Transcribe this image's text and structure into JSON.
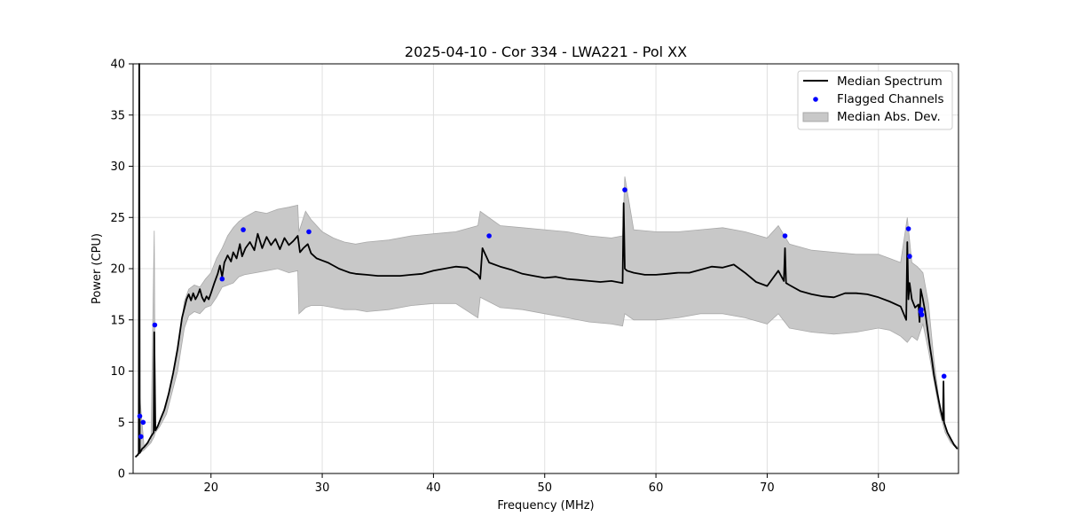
{
  "chart_data": {
    "type": "line",
    "title": "2025-04-10 - Cor 334 - LWA221 - Pol XX",
    "xlabel": "Frequency (MHz)",
    "ylabel": "Power (CPU)",
    "xlim": [
      13.0,
      87.2
    ],
    "ylim": [
      0,
      40
    ],
    "xticks": [
      20,
      30,
      40,
      50,
      60,
      70,
      80
    ],
    "yticks": [
      0,
      5,
      10,
      15,
      20,
      25,
      30,
      35,
      40
    ],
    "grid": true,
    "legend_position": "top-right",
    "legend": [
      "Median Spectrum",
      "Flagged Channels",
      "Median Abs. Dev."
    ],
    "series": [
      {
        "name": "Median Spectrum",
        "kind": "line",
        "color": "#000000",
        "x": [
          13.2,
          13.4,
          13.5,
          13.55,
          13.6,
          13.7,
          13.8,
          14.0,
          14.3,
          14.6,
          14.85,
          14.9,
          15.0,
          15.2,
          15.5,
          15.8,
          16.2,
          16.6,
          17.0,
          17.4,
          17.8,
          18.0,
          18.2,
          18.4,
          18.6,
          18.8,
          19.0,
          19.2,
          19.4,
          19.6,
          19.8,
          20.0,
          20.3,
          20.6,
          20.8,
          21.0,
          21.2,
          21.5,
          21.8,
          22.0,
          22.3,
          22.6,
          22.8,
          23.1,
          23.5,
          23.9,
          24.2,
          24.6,
          25.0,
          25.4,
          25.8,
          26.2,
          26.6,
          27.0,
          27.4,
          27.8,
          28.0,
          28.3,
          28.7,
          29.0,
          29.5,
          30.0,
          30.5,
          31.0,
          31.5,
          32.0,
          32.5,
          33.0,
          34.0,
          35.0,
          36.0,
          37.0,
          38.0,
          39.0,
          40.0,
          41.0,
          42.0,
          43.0,
          44.0,
          44.2,
          44.4,
          45.0,
          46.0,
          47.0,
          48.0,
          49.0,
          50.0,
          51.0,
          52.0,
          53.0,
          54.0,
          55.0,
          56.0,
          57.0,
          57.1,
          57.2,
          57.4,
          58.0,
          59.0,
          60.0,
          61.0,
          62.0,
          63.0,
          64.0,
          65.0,
          66.0,
          67.0,
          68.0,
          69.0,
          70.0,
          71.0,
          71.5,
          71.6,
          71.7,
          72.0,
          73.0,
          74.0,
          75.0,
          76.0,
          77.0,
          78.0,
          79.0,
          80.0,
          81.0,
          82.0,
          82.5,
          82.6,
          82.7,
          82.8,
          83.0,
          83.3,
          83.6,
          83.7,
          83.8,
          84.0,
          84.2,
          84.4,
          84.6,
          84.8,
          85.0,
          85.3,
          85.6,
          85.8,
          85.85,
          85.9,
          86.2,
          86.5,
          86.8,
          87.1
        ],
        "y": [
          1.6,
          1.8,
          2.0,
          40.0,
          2.0,
          2.2,
          2.4,
          2.6,
          3.0,
          3.6,
          4.0,
          13.8,
          4.2,
          4.6,
          5.4,
          6.2,
          7.8,
          9.8,
          12.2,
          15.2,
          17.0,
          17.5,
          16.9,
          17.6,
          17.0,
          17.4,
          18.0,
          17.2,
          16.8,
          17.3,
          17.0,
          17.6,
          18.6,
          19.5,
          20.3,
          19.2,
          20.6,
          21.3,
          20.7,
          21.6,
          21.0,
          22.4,
          21.2,
          22.0,
          22.6,
          21.8,
          23.4,
          22.0,
          23.1,
          22.3,
          22.9,
          21.9,
          23.0,
          22.3,
          22.7,
          23.2,
          21.6,
          22.0,
          22.4,
          21.5,
          21.0,
          20.8,
          20.6,
          20.3,
          20.0,
          19.8,
          19.6,
          19.5,
          19.4,
          19.3,
          19.3,
          19.3,
          19.4,
          19.5,
          19.8,
          20.0,
          20.2,
          20.1,
          19.4,
          19.0,
          22.0,
          20.6,
          20.2,
          19.9,
          19.5,
          19.3,
          19.1,
          19.2,
          19.0,
          18.9,
          18.8,
          18.7,
          18.8,
          18.6,
          26.4,
          20.0,
          19.8,
          19.6,
          19.4,
          19.4,
          19.5,
          19.6,
          19.6,
          19.9,
          20.2,
          20.1,
          20.4,
          19.6,
          18.7,
          18.3,
          19.8,
          18.8,
          22.0,
          18.6,
          18.4,
          17.8,
          17.5,
          17.3,
          17.2,
          17.6,
          17.6,
          17.5,
          17.2,
          16.8,
          16.3,
          15.0,
          22.6,
          17.0,
          18.6,
          17.0,
          16.2,
          16.5,
          14.8,
          18.0,
          17.0,
          15.8,
          14.2,
          12.6,
          11.2,
          9.6,
          7.8,
          6.2,
          5.2,
          9.0,
          5.0,
          4.0,
          3.4,
          2.8,
          2.4
        ]
      },
      {
        "name": "Flagged Channels",
        "kind": "scatter",
        "color": "#0000ff",
        "x": [
          13.6,
          13.7,
          13.9,
          14.95,
          21.0,
          22.9,
          28.8,
          45.0,
          57.2,
          71.6,
          82.7,
          82.8,
          83.8,
          83.85,
          83.9,
          85.9
        ],
        "y": [
          5.6,
          3.6,
          5.0,
          14.5,
          19.0,
          23.8,
          23.6,
          23.2,
          27.7,
          23.2,
          23.9,
          21.2,
          15.8,
          16.0,
          15.5,
          9.5
        ]
      },
      {
        "name": "Median Abs. Dev.",
        "kind": "band",
        "color": "#c8c8c8",
        "edge_color": "#a9a9a9",
        "x": [
          13.2,
          13.5,
          13.6,
          14.0,
          14.6,
          14.9,
          15.0,
          15.4,
          16.0,
          17.0,
          17.6,
          18.0,
          18.5,
          19.0,
          19.5,
          20.0,
          20.5,
          21.0,
          21.5,
          22.0,
          22.5,
          23.0,
          24.0,
          25.0,
          26.0,
          27.0,
          27.8,
          27.9,
          28.5,
          29.0,
          30.0,
          31.0,
          32.0,
          33.0,
          34.0,
          36.0,
          38.0,
          40.0,
          42.0,
          44.0,
          44.2,
          46.0,
          48.0,
          50.0,
          52.0,
          54.0,
          56.0,
          57.0,
          57.2,
          58.0,
          60.0,
          62.0,
          64.0,
          66.0,
          68.0,
          70.0,
          71.0,
          72.0,
          74.0,
          76.0,
          78.0,
          80.0,
          81.0,
          82.0,
          82.6,
          83.0,
          83.5,
          84.0,
          84.5,
          85.0,
          85.5,
          86.0,
          86.5,
          87.1
        ],
        "lower": [
          1.6,
          1.8,
          2.0,
          2.3,
          3.0,
          3.6,
          4.0,
          4.6,
          5.8,
          10.0,
          14.2,
          15.4,
          15.8,
          15.6,
          16.2,
          16.4,
          17.2,
          18.2,
          18.4,
          18.6,
          19.2,
          19.4,
          19.6,
          19.8,
          20.0,
          19.6,
          19.8,
          15.6,
          16.2,
          16.4,
          16.4,
          16.2,
          16.0,
          16.0,
          15.8,
          16.0,
          16.4,
          16.6,
          16.6,
          15.2,
          17.2,
          16.2,
          16.0,
          15.6,
          15.2,
          14.8,
          14.6,
          14.4,
          15.6,
          15.0,
          15.0,
          15.2,
          15.6,
          15.6,
          15.2,
          14.6,
          15.6,
          14.2,
          13.8,
          13.6,
          13.8,
          14.2,
          14.0,
          13.4,
          12.8,
          13.4,
          13.0,
          14.6,
          12.0,
          9.0,
          6.0,
          4.0,
          3.0,
          2.4
        ],
        "upper": [
          1.6,
          1.8,
          7.5,
          2.5,
          3.2,
          23.7,
          4.4,
          5.0,
          6.6,
          11.8,
          16.8,
          18.0,
          18.4,
          18.2,
          19.0,
          19.6,
          21.0,
          22.0,
          23.2,
          24.0,
          24.6,
          25.0,
          25.6,
          25.4,
          25.8,
          26.0,
          26.2,
          23.6,
          25.6,
          24.8,
          23.6,
          23.0,
          22.6,
          22.4,
          22.6,
          22.8,
          23.2,
          23.4,
          23.6,
          24.2,
          25.6,
          24.2,
          24.0,
          23.8,
          23.6,
          23.2,
          23.0,
          23.2,
          29.0,
          23.8,
          23.6,
          23.6,
          23.8,
          24.0,
          23.6,
          23.0,
          24.2,
          22.4,
          21.8,
          21.6,
          21.4,
          21.4,
          21.0,
          20.6,
          25.0,
          20.6,
          20.2,
          19.6,
          16.6,
          11.0,
          6.8,
          4.4,
          3.2,
          2.6
        ]
      }
    ]
  }
}
